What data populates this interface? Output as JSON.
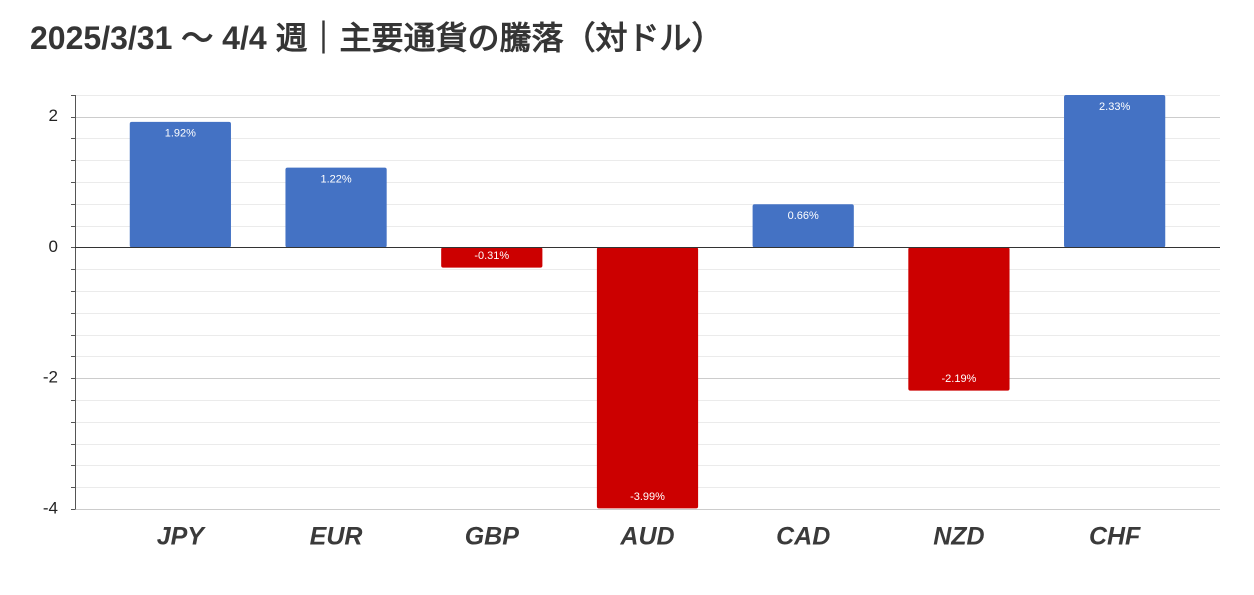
{
  "chart_data": {
    "type": "bar",
    "title": "2025/3/31 〜 4/4 週｜主要通貨の騰落（対ドル）",
    "categories": [
      "JPY",
      "EUR",
      "GBP",
      "AUD",
      "CAD",
      "NZD",
      "CHF"
    ],
    "values": [
      1.92,
      1.22,
      -0.31,
      -3.99,
      0.66,
      -2.19,
      2.33
    ],
    "data_labels": [
      "1.92%",
      "1.22%",
      "-0.31%",
      "-3.99%",
      "0.66%",
      "-2.19%",
      "2.33%"
    ],
    "ylim": [
      -4,
      2.33
    ],
    "yticks": [
      2,
      0,
      -2,
      -4
    ],
    "grid": true,
    "colors": {
      "positive": "#4472C4",
      "negative": "#CC0000",
      "zero_line": "#333333"
    }
  }
}
